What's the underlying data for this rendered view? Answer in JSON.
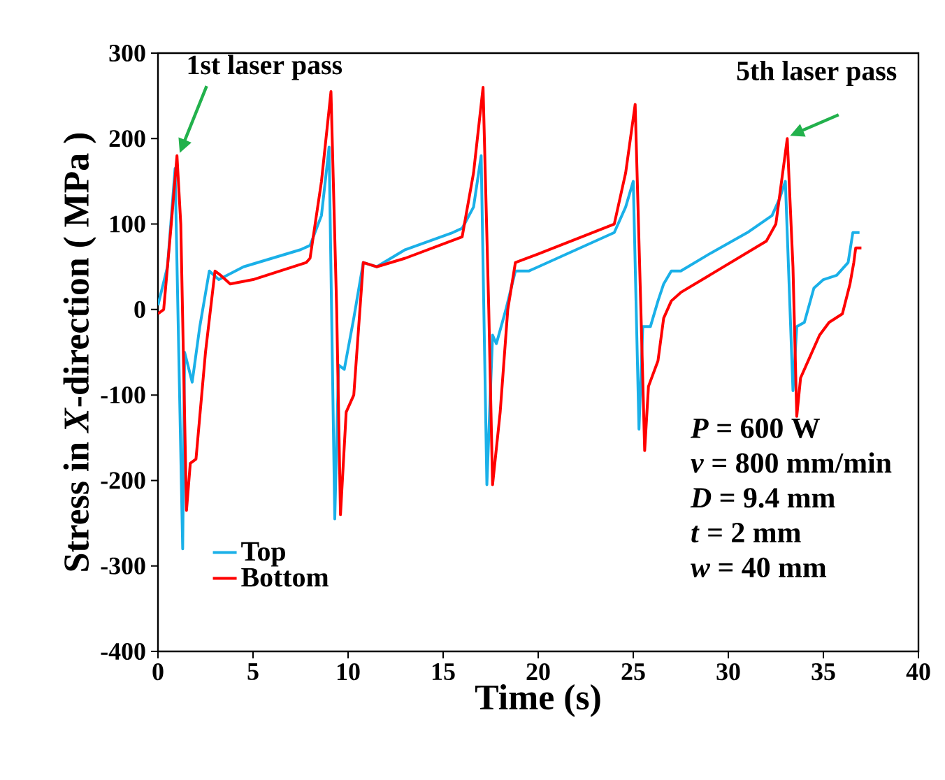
{
  "chart_data": {
    "type": "line",
    "xlabel": "Time (s)",
    "ylabel": "Stress in *X*-direction ( MPa )",
    "xlim": [
      0,
      40
    ],
    "xticks": [
      0,
      5,
      10,
      15,
      20,
      25,
      30,
      35,
      40
    ],
    "ylim": [
      -400,
      300
    ],
    "yticks": [
      -400,
      -300,
      -200,
      -100,
      0,
      100,
      200,
      300
    ],
    "legend": "bottom left",
    "grid": false,
    "marker": "none",
    "line_style": "solid",
    "series": [
      {
        "name": "Top",
        "color": "#1ab0e8",
        "x": [
          0,
          0.5,
          0.9,
          1.3,
          1.4,
          1.8,
          2.2,
          2.7,
          3.2,
          4.5,
          7.5,
          8.0,
          8.6,
          9.0,
          9.3,
          9.5,
          9.8,
          10.3,
          10.8,
          11.5,
          13,
          15.5,
          16.0,
          16.6,
          17.0,
          17.3,
          17.6,
          17.8,
          18.3,
          18.8,
          19.5,
          21,
          23,
          24,
          24.6,
          25.0,
          25.3,
          25.5,
          25.9,
          26.3,
          26.6,
          27,
          27.5,
          29,
          31,
          32.3,
          32.7,
          33.0,
          33.4,
          33.6,
          34.0,
          34.5,
          35,
          35.7,
          36.3,
          36.55,
          36.9
        ],
        "values": [
          5,
          50,
          165,
          -280,
          -50,
          -85,
          -20,
          45,
          35,
          50,
          70,
          75,
          110,
          190,
          -245,
          -65,
          -70,
          -10,
          55,
          50,
          70,
          90,
          95,
          120,
          180,
          -205,
          -30,
          -40,
          0,
          45,
          45,
          60,
          80,
          90,
          120,
          150,
          -140,
          -20,
          -20,
          10,
          30,
          45,
          45,
          65,
          90,
          110,
          130,
          150,
          -95,
          -20,
          -15,
          25,
          35,
          40,
          55,
          90,
          90
        ]
      },
      {
        "name": "Bottom",
        "color": "#ff0000",
        "x": [
          0,
          0.3,
          0.7,
          1.0,
          1.2,
          1.5,
          1.7,
          2.0,
          2.5,
          3.0,
          3.3,
          3.8,
          5,
          7.8,
          8.0,
          8.6,
          9.1,
          9.4,
          9.6,
          9.9,
          10.3,
          10.8,
          11.5,
          13,
          16.0,
          16.6,
          17.1,
          17.4,
          17.6,
          18.0,
          18.4,
          18.8,
          20,
          24,
          24.6,
          25.1,
          25.4,
          25.6,
          25.8,
          26.3,
          26.6,
          27,
          27.5,
          29,
          32,
          32.5,
          33.1,
          33.4,
          33.6,
          33.8,
          34.3,
          34.8,
          35.3,
          36,
          36.4,
          36.6,
          36.7,
          37.0
        ],
        "values": [
          -5,
          0,
          100,
          180,
          100,
          -235,
          -180,
          -175,
          -50,
          45,
          40,
          30,
          35,
          55,
          60,
          150,
          255,
          0,
          -240,
          -120,
          -100,
          55,
          50,
          60,
          85,
          160,
          260,
          0,
          -205,
          -120,
          0,
          55,
          65,
          100,
          160,
          240,
          0,
          -165,
          -90,
          -60,
          -10,
          10,
          20,
          40,
          80,
          100,
          200,
          50,
          -125,
          -80,
          -55,
          -30,
          -15,
          -5,
          30,
          55,
          72,
          72
        ]
      }
    ],
    "annotations": [
      {
        "text": "1st laser pass",
        "x": 1.0,
        "y": 180
      },
      {
        "text": "5th laser pass",
        "x": 33.1,
        "y": 200
      },
      "*P* = 600 W",
      "*v* = 800 mm/min",
      "*D* = 9.4 mm",
      "*t* = 2 mm",
      "*w* = 40 mm"
    ]
  }
}
